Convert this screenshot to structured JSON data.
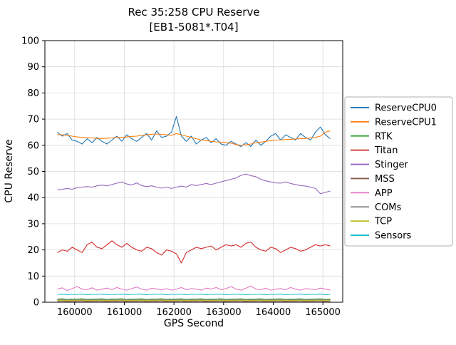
{
  "title": "Rec 35:258 CPU Reserve",
  "subtitle": "[EB1-5081*.T04]",
  "chart_data": {
    "type": "line",
    "title": "Rec 35:258 CPU Reserve",
    "subtitle": "[EB1-5081*.T04]",
    "xlabel": "GPS Second",
    "ylabel": "CPU Reserve",
    "xlim": [
      159400,
      165400
    ],
    "ylim": [
      0,
      100
    ],
    "xticks": [
      160000,
      161000,
      162000,
      163000,
      164000,
      165000
    ],
    "yticks": [
      0,
      10,
      20,
      30,
      40,
      50,
      60,
      70,
      80,
      90,
      100
    ],
    "grid": true,
    "legend_position": "right",
    "x_start": 159650,
    "x_step": 100,
    "series": [
      {
        "name": "ReserveCPU0",
        "color": "#1f77b4",
        "values": [
          65,
          63.5,
          64.5,
          62,
          61.5,
          60.5,
          62.5,
          61,
          63,
          61.5,
          60.5,
          62,
          63.5,
          61.5,
          64,
          62.5,
          61.5,
          63,
          64.5,
          62,
          65.5,
          63,
          63.5,
          65,
          71,
          63.5,
          61.5,
          63.5,
          60.5,
          62,
          63,
          61,
          62.5,
          60.5,
          60,
          61.5,
          60.5,
          59.5,
          61,
          59.5,
          62,
          60,
          61.5,
          63.5,
          64.5,
          62,
          64,
          63,
          62,
          64.5,
          63,
          62,
          65,
          67,
          64,
          62.5
        ]
      },
      {
        "name": "ReserveCPU1",
        "color": "#ff7f0e",
        "values": [
          64,
          64,
          63.8,
          63.5,
          63.2,
          63,
          63,
          62.8,
          62.6,
          62.6,
          62.7,
          62.8,
          63,
          63,
          63.2,
          63.4,
          63.5,
          63.8,
          64,
          64.2,
          64.3,
          64.2,
          64,
          63.8,
          64.5,
          64,
          63.5,
          63,
          62.5,
          62,
          61.8,
          61.5,
          61.3,
          61.2,
          61,
          60.8,
          60.3,
          60,
          60.2,
          60.5,
          61,
          61.2,
          61.5,
          61.8,
          62,
          62,
          62.2,
          62.3,
          62.4,
          62.5,
          62.6,
          62.8,
          63,
          63.5,
          65,
          65.5
        ]
      },
      {
        "name": "RTK",
        "color": "#2ca02c",
        "values": [
          1.2,
          1.3,
          1.1,
          1.2,
          1.2,
          1.3,
          1.1,
          1.2,
          1.2,
          1.3,
          1.1,
          1.2,
          1.2,
          1.3,
          1.1,
          1.2,
          1.2,
          1.3,
          1.1,
          1.2,
          1.2,
          1.3,
          1.1,
          1.2,
          1.2,
          1.3,
          1.1,
          1.2,
          1.2,
          1.3,
          1.1,
          1.2,
          1.2,
          1.3,
          1.1,
          1.2,
          1.2,
          1.3,
          1.1,
          1.2,
          1.2,
          1.3,
          1.1,
          1.2,
          1.2,
          1.3,
          1.1,
          1.2,
          1.2,
          1.3,
          1.1,
          1.2,
          1.2,
          1.3,
          1.1,
          1.2
        ]
      },
      {
        "name": "Titan",
        "color": "#d62728",
        "values": [
          19,
          20,
          19.5,
          21,
          20,
          19,
          22,
          23,
          21,
          20.5,
          22,
          23.5,
          22,
          21,
          22.5,
          21,
          20,
          19.5,
          21,
          20.5,
          19,
          18,
          20,
          19.5,
          18.5,
          15,
          19,
          20,
          21,
          20.5,
          21,
          21.5,
          20,
          21,
          22,
          21.5,
          22,
          21,
          22.5,
          23,
          21,
          20,
          19.5,
          21,
          20.5,
          19,
          20,
          21,
          20.5,
          19.5,
          20,
          21,
          22,
          21.5,
          22,
          21.5
        ]
      },
      {
        "name": "Stinger",
        "color": "#9467bd",
        "values": [
          43,
          43.2,
          43.5,
          43.2,
          43.8,
          44,
          44.2,
          44,
          44.5,
          44.8,
          44.5,
          45,
          45.5,
          46,
          45.2,
          44.8,
          45.6,
          44.6,
          44.2,
          44.5,
          44,
          43.6,
          44,
          43.5,
          44,
          44.4,
          44,
          45,
          44.6,
          45,
          45.4,
          45,
          45.5,
          46,
          46.5,
          47,
          47.5,
          48.5,
          49,
          48.4,
          48,
          47,
          46.4,
          46,
          45.6,
          45.5,
          46,
          45.4,
          45,
          44.6,
          44.4,
          44,
          43.5,
          41.5,
          42,
          42.5
        ]
      },
      {
        "name": "MSS",
        "color": "#8c564b",
        "values": [
          0.4,
          0.5,
          0.3,
          0.4,
          0.4,
          0.5,
          0.3,
          0.4,
          0.4,
          0.5,
          0.3,
          0.4,
          0.4,
          0.5,
          0.3,
          0.4,
          0.4,
          0.5,
          0.3,
          0.4,
          0.4,
          0.5,
          0.3,
          0.4,
          0.4,
          0.5,
          0.3,
          0.4,
          0.4,
          0.5,
          0.3,
          0.4,
          0.4,
          0.5,
          0.3,
          0.4,
          0.4,
          0.5,
          0.3,
          0.4,
          0.4,
          0.5,
          0.3,
          0.4,
          0.4,
          0.5,
          0.3,
          0.4,
          0.4,
          0.5,
          0.3,
          0.4,
          0.4,
          0.5,
          0.3,
          0.4
        ]
      },
      {
        "name": "APP",
        "color": "#e377c2",
        "values": [
          5,
          5.5,
          4.5,
          5.2,
          6,
          5,
          4.8,
          5.5,
          4.6,
          5,
          5.4,
          4.8,
          5.6,
          5,
          4.6,
          5.2,
          5.8,
          5,
          4.6,
          5.4,
          5,
          4.8,
          5.2,
          4.6,
          5,
          5.6,
          4.8,
          5.2,
          5,
          4.6,
          5.4,
          5,
          5.6,
          4.8,
          5.2,
          6,
          5,
          4.6,
          5.4,
          6.2,
          5,
          4.8,
          5.4,
          4.6,
          5,
          5.2,
          4.8,
          5.6,
          5,
          4.6,
          5.2,
          5,
          4.8,
          5.4,
          5,
          4.6
        ]
      },
      {
        "name": "COMs",
        "color": "#7f7f7f",
        "values": [
          1,
          1.1,
          0.9,
          1,
          1,
          1.1,
          0.9,
          1,
          1,
          1.1,
          0.9,
          1,
          1,
          1.1,
          0.9,
          1,
          1,
          1.1,
          0.9,
          1,
          1,
          1.1,
          0.9,
          1,
          1,
          1.1,
          0.9,
          1,
          1,
          1.1,
          0.9,
          1,
          1,
          1.1,
          0.9,
          1,
          1,
          1.1,
          0.9,
          1,
          1,
          1.1,
          0.9,
          1,
          1,
          1.1,
          0.9,
          1,
          1,
          1.1,
          0.9,
          1,
          1,
          1.1,
          0.9,
          1
        ]
      },
      {
        "name": "TCP",
        "color": "#bcbd22",
        "values": [
          0.7,
          0.8,
          0.6,
          0.7,
          0.7,
          0.8,
          0.6,
          0.7,
          0.7,
          0.8,
          0.6,
          0.7,
          0.7,
          0.8,
          0.6,
          0.7,
          0.7,
          0.8,
          0.6,
          0.7,
          0.7,
          0.8,
          0.6,
          0.7,
          0.7,
          0.8,
          0.6,
          0.7,
          0.7,
          0.8,
          0.6,
          0.7,
          0.7,
          0.8,
          0.6,
          0.7,
          0.7,
          0.8,
          0.6,
          0.7,
          0.7,
          0.8,
          0.6,
          0.7,
          0.7,
          0.8,
          0.6,
          0.7,
          0.7,
          0.8,
          0.6,
          0.7,
          0.7,
          0.8,
          0.6,
          0.7
        ]
      },
      {
        "name": "Sensors",
        "color": "#17becf",
        "values": [
          3,
          3.1,
          2.9,
          3,
          3,
          3.1,
          2.9,
          3,
          3,
          3.1,
          2.9,
          3,
          3,
          3.1,
          2.9,
          3,
          3,
          3.1,
          2.9,
          3,
          3,
          3.1,
          2.9,
          3,
          3,
          3.1,
          2.9,
          3,
          3,
          3.1,
          2.9,
          3,
          3,
          3.1,
          2.9,
          3,
          3,
          3.1,
          2.9,
          3,
          3,
          3.1,
          2.9,
          3,
          3,
          3.1,
          2.9,
          3,
          3,
          3.1,
          2.9,
          3,
          3,
          3.1,
          2.9,
          3
        ]
      }
    ]
  }
}
